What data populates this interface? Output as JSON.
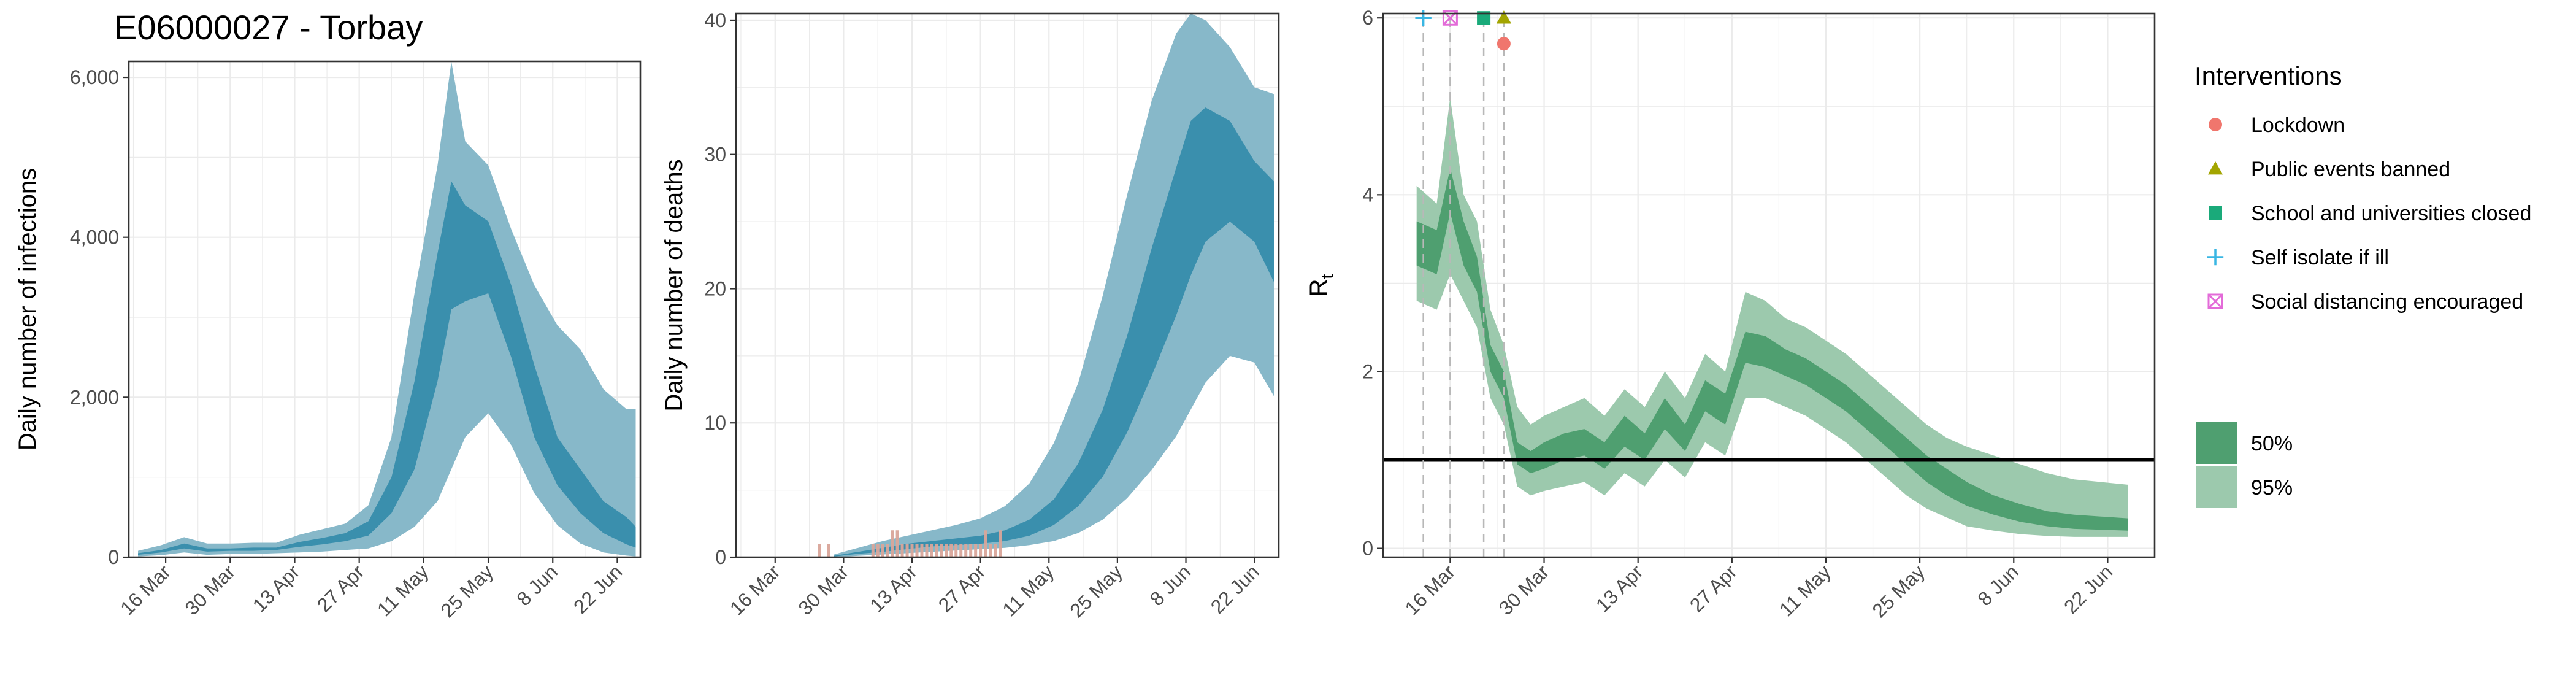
{
  "title": "E06000027 - Torbay",
  "chart_data": [
    {
      "type": "area",
      "id": "infections",
      "ylabel": "Daily number of infections",
      "xlabel": "",
      "xlim": [
        "2020-03-08",
        "2020-06-27"
      ],
      "ylim": [
        0,
        6200
      ],
      "yticks": [
        0,
        2000,
        4000,
        6000
      ],
      "ytick_labels": [
        "0",
        "2,000",
        "4,000",
        "6,000"
      ],
      "xticks": [
        "2020-03-16",
        "2020-03-30",
        "2020-04-13",
        "2020-04-27",
        "2020-05-11",
        "2020-05-25",
        "2020-06-08",
        "2020-06-22"
      ],
      "xtick_labels": [
        "16 Mar",
        "30 Mar",
        "13 Apr",
        "27 Apr",
        "11 May",
        "25 May",
        "8 Jun",
        "22 Jun"
      ],
      "grid": true,
      "colors": {
        "ci95": "#87b8c9",
        "ci50": "#3a8fad"
      },
      "x": [
        "2020-03-10",
        "2020-03-15",
        "2020-03-20",
        "2020-03-25",
        "2020-03-30",
        "2020-04-04",
        "2020-04-09",
        "2020-04-14",
        "2020-04-19",
        "2020-04-24",
        "2020-04-29",
        "2020-05-04",
        "2020-05-09",
        "2020-05-14",
        "2020-05-17",
        "2020-05-20",
        "2020-05-25",
        "2020-05-30",
        "2020-06-04",
        "2020-06-09",
        "2020-06-14",
        "2020-06-19",
        "2020-06-24",
        "2020-06-26"
      ],
      "upper95": [
        80,
        150,
        250,
        170,
        170,
        180,
        180,
        280,
        350,
        420,
        650,
        1500,
        3300,
        4900,
        6200,
        5200,
        4900,
        4100,
        3400,
        2900,
        2600,
        2100,
        1850,
        1850
      ],
      "upper50": [
        50,
        90,
        170,
        110,
        110,
        120,
        120,
        190,
        240,
        300,
        450,
        1000,
        2200,
        3800,
        4700,
        4400,
        4200,
        3400,
        2400,
        1500,
        1100,
        700,
        500,
        380
      ],
      "lower50": [
        30,
        60,
        110,
        70,
        80,
        80,
        90,
        130,
        160,
        200,
        270,
        550,
        1100,
        2200,
        3100,
        3200,
        3300,
        2500,
        1500,
        900,
        550,
        300,
        160,
        120
      ],
      "lower95": [
        10,
        25,
        60,
        30,
        40,
        40,
        50,
        60,
        70,
        90,
        110,
        200,
        380,
        700,
        1100,
        1500,
        1800,
        1400,
        800,
        400,
        170,
        60,
        20,
        10
      ]
    },
    {
      "type": "area",
      "id": "deaths",
      "ylabel": "Daily number of deaths",
      "xlabel": "",
      "xlim": [
        "2020-03-08",
        "2020-06-27"
      ],
      "ylim": [
        0,
        40.5
      ],
      "yticks": [
        0,
        10,
        20,
        30,
        40
      ],
      "ytick_labels": [
        "0",
        "10",
        "20",
        "30",
        "40"
      ],
      "xticks": [
        "2020-03-16",
        "2020-03-30",
        "2020-04-13",
        "2020-04-27",
        "2020-05-11",
        "2020-05-25",
        "2020-06-08",
        "2020-06-22"
      ],
      "xtick_labels": [
        "16 Mar",
        "30 Mar",
        "13 Apr",
        "27 Apr",
        "11 May",
        "25 May",
        "8 Jun",
        "22 Jun"
      ],
      "grid": true,
      "colors": {
        "ci95": "#87b8c9",
        "ci50": "#3a8fad",
        "observed": "#d9a59a"
      },
      "x": [
        "2020-03-28",
        "2020-04-02",
        "2020-04-07",
        "2020-04-12",
        "2020-04-17",
        "2020-04-22",
        "2020-04-27",
        "2020-05-02",
        "2020-05-07",
        "2020-05-12",
        "2020-05-17",
        "2020-05-22",
        "2020-05-27",
        "2020-06-01",
        "2020-06-06",
        "2020-06-09",
        "2020-06-12",
        "2020-06-17",
        "2020-06-22",
        "2020-06-26"
      ],
      "upper95": [
        0.2,
        0.7,
        1.2,
        1.6,
        2.0,
        2.4,
        2.9,
        3.8,
        5.5,
        8.5,
        13.0,
        19.5,
        27.0,
        34.0,
        39.0,
        40.5,
        40.0,
        38.0,
        35.0,
        34.5
      ],
      "upper50": [
        0.1,
        0.4,
        0.7,
        1.0,
        1.2,
        1.4,
        1.6,
        2.0,
        2.8,
        4.3,
        7.0,
        11.0,
        16.5,
        23.0,
        29.0,
        32.5,
        33.5,
        32.5,
        29.5,
        28.0
      ],
      "lower50": [
        0.05,
        0.25,
        0.4,
        0.6,
        0.8,
        0.9,
        1.0,
        1.2,
        1.6,
        2.4,
        3.8,
        6.0,
        9.3,
        13.5,
        18.0,
        21.0,
        23.5,
        25.0,
        23.5,
        20.5
      ],
      "lower95": [
        0.0,
        0.1,
        0.2,
        0.3,
        0.4,
        0.5,
        0.6,
        0.7,
        0.9,
        1.2,
        1.8,
        2.8,
        4.4,
        6.5,
        9.0,
        11.0,
        13.0,
        15.0,
        14.5,
        12.0
      ],
      "observed_dates": [
        "2020-03-25",
        "2020-03-27",
        "2020-04-05",
        "2020-04-06",
        "2020-04-07",
        "2020-04-08",
        "2020-04-09",
        "2020-04-10",
        "2020-04-11",
        "2020-04-12",
        "2020-04-13",
        "2020-04-14",
        "2020-04-15",
        "2020-04-16",
        "2020-04-17",
        "2020-04-18",
        "2020-04-19",
        "2020-04-20",
        "2020-04-21",
        "2020-04-22",
        "2020-04-23",
        "2020-04-24",
        "2020-04-25",
        "2020-04-26",
        "2020-04-27",
        "2020-04-28",
        "2020-04-29",
        "2020-04-30",
        "2020-05-01"
      ],
      "observed_deaths": [
        1,
        1,
        1,
        1,
        1,
        1,
        2,
        2,
        1,
        1,
        1,
        1,
        1,
        1,
        1,
        1,
        1,
        1,
        1,
        1,
        1,
        1,
        1,
        1,
        1,
        2,
        1,
        1,
        2
      ]
    },
    {
      "type": "area",
      "id": "rt",
      "ylabel": "R",
      "ylabel_subscript": "t",
      "xlabel": "",
      "xlim": [
        "2020-03-06",
        "2020-06-29"
      ],
      "ylim": [
        -0.1,
        6.05
      ],
      "yticks": [
        0,
        2,
        4,
        6
      ],
      "ytick_labels": [
        "0",
        "2",
        "4",
        "6"
      ],
      "xticks": [
        "2020-03-16",
        "2020-03-30",
        "2020-04-13",
        "2020-04-27",
        "2020-05-11",
        "2020-05-25",
        "2020-06-08",
        "2020-06-22"
      ],
      "xtick_labels": [
        "16 Mar",
        "30 Mar",
        "13 Apr",
        "27 Apr",
        "11 May",
        "25 May",
        "8 Jun",
        "22 Jun"
      ],
      "grid": true,
      "reference_line": 1,
      "colors": {
        "ci95": "#9cc9ad",
        "ci50": "#4f9f70",
        "reference": "#000000",
        "intervention_line": "#b8b8b8"
      },
      "x": [
        "2020-03-11",
        "2020-03-14",
        "2020-03-16",
        "2020-03-18",
        "2020-03-20",
        "2020-03-22",
        "2020-03-24",
        "2020-03-26",
        "2020-03-28",
        "2020-03-30",
        "2020-04-02",
        "2020-04-05",
        "2020-04-08",
        "2020-04-11",
        "2020-04-14",
        "2020-04-17",
        "2020-04-20",
        "2020-04-23",
        "2020-04-26",
        "2020-04-29",
        "2020-05-02",
        "2020-05-05",
        "2020-05-08",
        "2020-05-11",
        "2020-05-14",
        "2020-05-17",
        "2020-05-20",
        "2020-05-23",
        "2020-05-26",
        "2020-05-29",
        "2020-06-01",
        "2020-06-05",
        "2020-06-09",
        "2020-06-13",
        "2020-06-17",
        "2020-06-21",
        "2020-06-25"
      ],
      "upper95": [
        4.1,
        3.9,
        5.1,
        4.0,
        3.7,
        2.7,
        2.3,
        1.6,
        1.4,
        1.5,
        1.6,
        1.7,
        1.5,
        1.8,
        1.6,
        2.0,
        1.7,
        2.2,
        2.0,
        2.9,
        2.8,
        2.6,
        2.5,
        2.35,
        2.2,
        2.0,
        1.8,
        1.6,
        1.4,
        1.25,
        1.15,
        1.05,
        0.95,
        0.85,
        0.78,
        0.75,
        0.72
      ],
      "upper50": [
        3.7,
        3.6,
        4.3,
        3.7,
        3.3,
        2.3,
        2.0,
        1.2,
        1.1,
        1.2,
        1.3,
        1.35,
        1.2,
        1.5,
        1.3,
        1.7,
        1.4,
        1.9,
        1.75,
        2.45,
        2.4,
        2.25,
        2.15,
        2.0,
        1.85,
        1.65,
        1.45,
        1.25,
        1.05,
        0.9,
        0.75,
        0.6,
        0.5,
        0.42,
        0.38,
        0.36,
        0.34
      ],
      "lower50": [
        3.2,
        3.1,
        3.8,
        3.2,
        2.9,
        2.0,
        1.7,
        0.95,
        0.85,
        0.9,
        1.0,
        1.05,
        0.9,
        1.15,
        1.0,
        1.35,
        1.1,
        1.55,
        1.4,
        2.1,
        2.05,
        1.95,
        1.85,
        1.7,
        1.55,
        1.35,
        1.15,
        0.95,
        0.75,
        0.6,
        0.48,
        0.38,
        0.3,
        0.25,
        0.22,
        0.21,
        0.2
      ],
      "lower95": [
        2.8,
        2.7,
        3.1,
        2.8,
        2.5,
        1.7,
        1.4,
        0.7,
        0.6,
        0.65,
        0.7,
        0.75,
        0.6,
        0.85,
        0.7,
        1.0,
        0.8,
        1.2,
        1.05,
        1.7,
        1.7,
        1.6,
        1.5,
        1.35,
        1.2,
        1.0,
        0.8,
        0.6,
        0.45,
        0.35,
        0.25,
        0.2,
        0.16,
        0.14,
        0.13,
        0.13,
        0.13
      ],
      "interventions": [
        {
          "date": "2020-03-12",
          "name": "Self isolate if ill",
          "symbol": "plus",
          "color": "#39b6e3"
        },
        {
          "date": "2020-03-16",
          "name": "Social distancing encouraged",
          "symbol": "boxx",
          "color": "#e36bd8"
        },
        {
          "date": "2020-03-21",
          "name": "School and universities closed",
          "symbol": "square",
          "color": "#1aaa7a"
        },
        {
          "date": "2020-03-24",
          "name": "Public events banned",
          "symbol": "triangle",
          "color": "#a3a500"
        },
        {
          "date": "2020-03-24",
          "name": "Lockdown",
          "symbol": "circle",
          "color": "#f0766d"
        }
      ]
    }
  ],
  "legend": {
    "interventions_title": "Interventions",
    "interventions": [
      {
        "label": "Lockdown",
        "symbol": "circle",
        "color": "#f0766d"
      },
      {
        "label": "Public events banned",
        "symbol": "triangle",
        "color": "#a3a500"
      },
      {
        "label": "School and universities closed",
        "symbol": "square",
        "color": "#1aaa7a"
      },
      {
        "label": "Self isolate if ill",
        "symbol": "plus",
        "color": "#39b6e3"
      },
      {
        "label": "Social distancing encouraged",
        "symbol": "boxx",
        "color": "#e36bd8"
      }
    ],
    "ci": [
      {
        "label": "50%",
        "color": "#4f9f70"
      },
      {
        "label": "95%",
        "color": "#9cc9ad"
      }
    ]
  }
}
